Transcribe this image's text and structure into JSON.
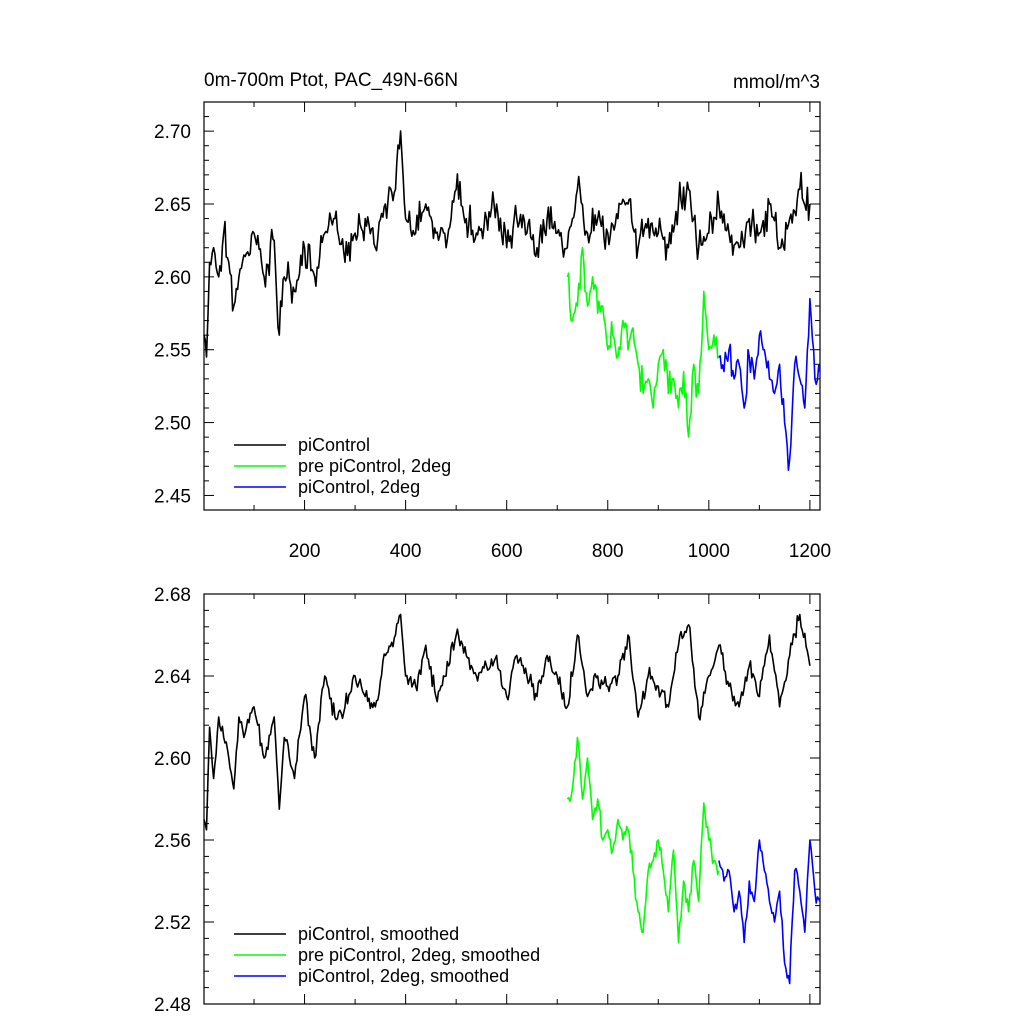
{
  "chart_data": [
    {
      "type": "line",
      "title": "0m-700m Ptot, PAC_49N-66N",
      "units": "mmol/m^3",
      "xlim": [
        1,
        1220
      ],
      "ylim": [
        2.44,
        2.72
      ],
      "xticks": [
        200,
        400,
        600,
        800,
        1000,
        1200
      ],
      "xtick_labels": [
        "200",
        "400",
        "600",
        "800",
        "1000",
        "1200"
      ],
      "yticks": [
        2.45,
        2.5,
        2.55,
        2.6,
        2.65,
        2.7
      ],
      "ytick_labels": [
        "2.45",
        "2.50",
        "2.55",
        "2.60",
        "2.65",
        "2.70"
      ],
      "legend_position": "bottom-left",
      "series": [
        {
          "name": "piControl",
          "color": "#000000",
          "x": [
            1,
            6,
            12,
            20,
            30,
            40,
            50,
            60,
            70,
            80,
            100,
            120,
            140,
            150,
            160,
            180,
            200,
            220,
            240,
            260,
            280,
            300,
            320,
            340,
            360,
            380,
            390,
            400,
            420,
            440,
            460,
            480,
            500,
            520,
            540,
            560,
            580,
            600,
            620,
            640,
            660,
            680,
            700,
            720,
            740,
            760,
            780,
            800,
            820,
            840,
            860,
            880,
            900,
            920,
            940,
            960,
            980,
            1000,
            1020,
            1040,
            1060,
            1080,
            1100,
            1120,
            1140,
            1160,
            1180,
            1200
          ],
          "y": [
            2.56,
            2.545,
            2.61,
            2.62,
            2.6,
            2.63,
            2.61,
            2.58,
            2.6,
            2.615,
            2.63,
            2.6,
            2.625,
            2.56,
            2.6,
            2.59,
            2.62,
            2.6,
            2.63,
            2.64,
            2.61,
            2.63,
            2.64,
            2.62,
            2.65,
            2.66,
            2.7,
            2.64,
            2.63,
            2.65,
            2.63,
            2.62,
            2.66,
            2.64,
            2.63,
            2.64,
            2.65,
            2.62,
            2.64,
            2.63,
            2.62,
            2.64,
            2.63,
            2.62,
            2.66,
            2.63,
            2.64,
            2.63,
            2.64,
            2.65,
            2.62,
            2.64,
            2.63,
            2.62,
            2.65,
            2.66,
            2.62,
            2.63,
            2.65,
            2.63,
            2.62,
            2.64,
            2.63,
            2.65,
            2.62,
            2.64,
            2.66,
            2.65
          ]
        },
        {
          "name": "pre piControl, 2deg",
          "color": "#00ff00",
          "x": [
            720,
            730,
            740,
            750,
            760,
            770,
            780,
            790,
            800,
            810,
            820,
            830,
            840,
            850,
            860,
            870,
            880,
            890,
            900,
            910,
            920,
            930,
            940,
            950,
            960,
            970,
            980,
            990,
            1000,
            1010,
            1020
          ],
          "y": [
            2.6,
            2.57,
            2.58,
            2.62,
            2.58,
            2.6,
            2.575,
            2.58,
            2.55,
            2.56,
            2.545,
            2.57,
            2.55,
            2.565,
            2.54,
            2.52,
            2.53,
            2.51,
            2.54,
            2.55,
            2.52,
            2.53,
            2.51,
            2.535,
            2.49,
            2.54,
            2.52,
            2.59,
            2.55,
            2.56,
            2.545
          ]
        },
        {
          "name": "piControl, 2deg",
          "color": "#0000ff",
          "x": [
            1020,
            1030,
            1040,
            1050,
            1060,
            1070,
            1080,
            1090,
            1100,
            1110,
            1120,
            1130,
            1140,
            1150,
            1160,
            1170,
            1180,
            1190,
            1200,
            1210,
            1220
          ],
          "y": [
            2.545,
            2.535,
            2.55,
            2.53,
            2.54,
            2.51,
            2.545,
            2.53,
            2.56,
            2.55,
            2.53,
            2.52,
            2.54,
            2.5,
            2.475,
            2.54,
            2.53,
            2.51,
            2.585,
            2.53,
            2.535
          ]
        }
      ]
    },
    {
      "type": "line",
      "xlim": [
        1,
        1220
      ],
      "ylim": [
        2.48,
        2.68
      ],
      "xticks": [
        200,
        400,
        600,
        800,
        1000,
        1200
      ],
      "yticks": [
        2.48,
        2.52,
        2.56,
        2.6,
        2.64,
        2.68
      ],
      "ytick_labels": [
        "2.48",
        "2.52",
        "2.56",
        "2.60",
        "2.64",
        "2.68"
      ],
      "legend_position": "bottom-left",
      "series": [
        {
          "name": "piControl, smoothed",
          "color": "#000000",
          "x": [
            1,
            6,
            12,
            20,
            30,
            40,
            50,
            60,
            70,
            80,
            100,
            120,
            140,
            150,
            160,
            180,
            200,
            220,
            240,
            260,
            280,
            300,
            320,
            340,
            360,
            380,
            390,
            400,
            420,
            440,
            460,
            480,
            500,
            520,
            540,
            560,
            580,
            600,
            620,
            640,
            660,
            680,
            700,
            720,
            740,
            760,
            780,
            800,
            820,
            840,
            860,
            880,
            900,
            920,
            940,
            960,
            980,
            1000,
            1020,
            1040,
            1060,
            1080,
            1100,
            1120,
            1140,
            1160,
            1180,
            1200
          ],
          "y": [
            2.57,
            2.565,
            2.615,
            2.59,
            2.62,
            2.61,
            2.6,
            2.585,
            2.62,
            2.61,
            2.625,
            2.6,
            2.62,
            2.575,
            2.61,
            2.59,
            2.63,
            2.6,
            2.64,
            2.62,
            2.625,
            2.64,
            2.63,
            2.625,
            2.65,
            2.66,
            2.67,
            2.64,
            2.635,
            2.655,
            2.63,
            2.64,
            2.66,
            2.65,
            2.64,
            2.645,
            2.65,
            2.63,
            2.65,
            2.64,
            2.63,
            2.65,
            2.64,
            2.625,
            2.66,
            2.63,
            2.64,
            2.635,
            2.64,
            2.66,
            2.62,
            2.64,
            2.635,
            2.625,
            2.655,
            2.665,
            2.62,
            2.64,
            2.655,
            2.635,
            2.625,
            2.645,
            2.63,
            2.66,
            2.625,
            2.65,
            2.67,
            2.645
          ]
        },
        {
          "name": "pre piControl, 2deg, smoothed",
          "color": "#00ff00",
          "x": [
            720,
            730,
            740,
            750,
            760,
            770,
            780,
            790,
            800,
            810,
            820,
            830,
            840,
            850,
            860,
            870,
            880,
            890,
            900,
            910,
            920,
            930,
            940,
            950,
            960,
            970,
            980,
            990,
            1000,
            1010,
            1020
          ],
          "y": [
            2.58,
            2.585,
            2.61,
            2.58,
            2.6,
            2.57,
            2.58,
            2.56,
            2.565,
            2.555,
            2.57,
            2.56,
            2.565,
            2.545,
            2.525,
            2.515,
            2.545,
            2.55,
            2.56,
            2.545,
            2.525,
            2.555,
            2.51,
            2.54,
            2.525,
            2.55,
            2.53,
            2.578,
            2.56,
            2.55,
            2.545
          ]
        },
        {
          "name": "piControl, 2deg, smoothed",
          "color": "#0000ff",
          "x": [
            1020,
            1030,
            1040,
            1050,
            1060,
            1070,
            1080,
            1090,
            1100,
            1110,
            1120,
            1130,
            1140,
            1150,
            1160,
            1170,
            1180,
            1190,
            1200,
            1210,
            1220
          ],
          "y": [
            2.55,
            2.54,
            2.545,
            2.525,
            2.535,
            2.51,
            2.54,
            2.53,
            2.56,
            2.545,
            2.53,
            2.52,
            2.535,
            2.5,
            2.49,
            2.545,
            2.535,
            2.515,
            2.56,
            2.535,
            2.53
          ]
        }
      ]
    }
  ]
}
